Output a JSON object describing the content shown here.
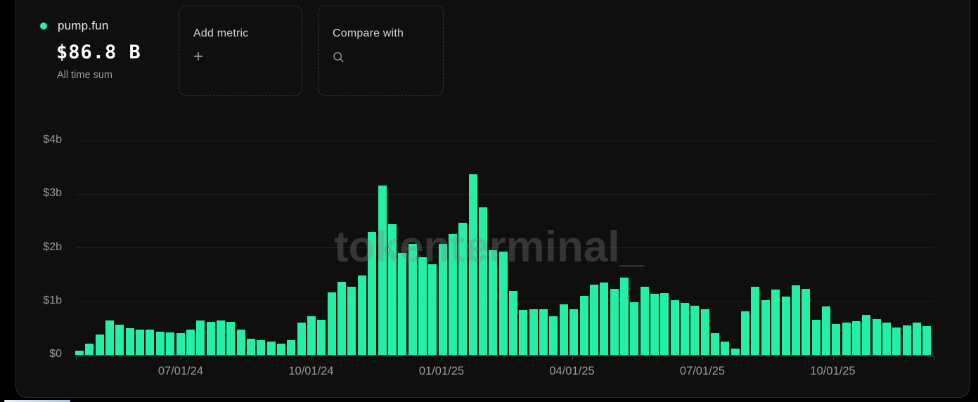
{
  "header": {
    "series_label": "pump.fun",
    "value": "$86.8 B",
    "value_caption": "All time sum",
    "dot_color": "#25efa5"
  },
  "toolbar": {
    "add_metric_label": "Add metric",
    "add_metric_icon": "+",
    "compare_with_label": "Compare with",
    "compare_with_icon": "search-icon"
  },
  "watermark_text": "tokenterminal_",
  "colors": {
    "bar": "#25efa5",
    "panel_background": "#0f0f0f",
    "outer_background": "#000000",
    "axis_text": "#9a9a9a",
    "gridline": "#1f1f1f"
  },
  "chart_data": {
    "type": "bar",
    "title": "",
    "series_name": "pump.fun",
    "unit": "USD billions per bar (weekly)",
    "ylabel": "",
    "xlabel": "",
    "ylim": [
      0,
      4
    ],
    "grid": true,
    "legend": false,
    "y_ticks": [
      "$4b",
      "$3b",
      "$2b",
      "$1b",
      "$0"
    ],
    "x_ticks": [
      "07/01/24",
      "10/01/24",
      "01/01/25",
      "04/01/25",
      "07/01/25",
      "10/01/25"
    ],
    "values": [
      0.08,
      0.22,
      0.38,
      0.64,
      0.57,
      0.5,
      0.48,
      0.47,
      0.44,
      0.42,
      0.41,
      0.48,
      0.64,
      0.62,
      0.64,
      0.62,
      0.48,
      0.31,
      0.28,
      0.25,
      0.22,
      0.28,
      0.61,
      0.72,
      0.66,
      1.17,
      1.37,
      1.28,
      1.49,
      2.3,
      3.16,
      2.44,
      1.9,
      2.07,
      1.83,
      1.7,
      2.08,
      2.26,
      2.47,
      3.37,
      2.75,
      1.95,
      1.93,
      1.2,
      0.84,
      0.86,
      0.86,
      0.73,
      0.95,
      0.86,
      1.1,
      1.31,
      1.35,
      1.24,
      1.44,
      0.99,
      1.28,
      1.15,
      1.16,
      1.03,
      0.97,
      0.92,
      0.85,
      0.41,
      0.25,
      0.12,
      0.81,
      1.28,
      1.03,
      1.22,
      1.09,
      1.3,
      1.23,
      0.66,
      0.91,
      0.58,
      0.61,
      0.63,
      0.75,
      0.67,
      0.61,
      0.51,
      0.56,
      0.61,
      0.54
    ]
  }
}
